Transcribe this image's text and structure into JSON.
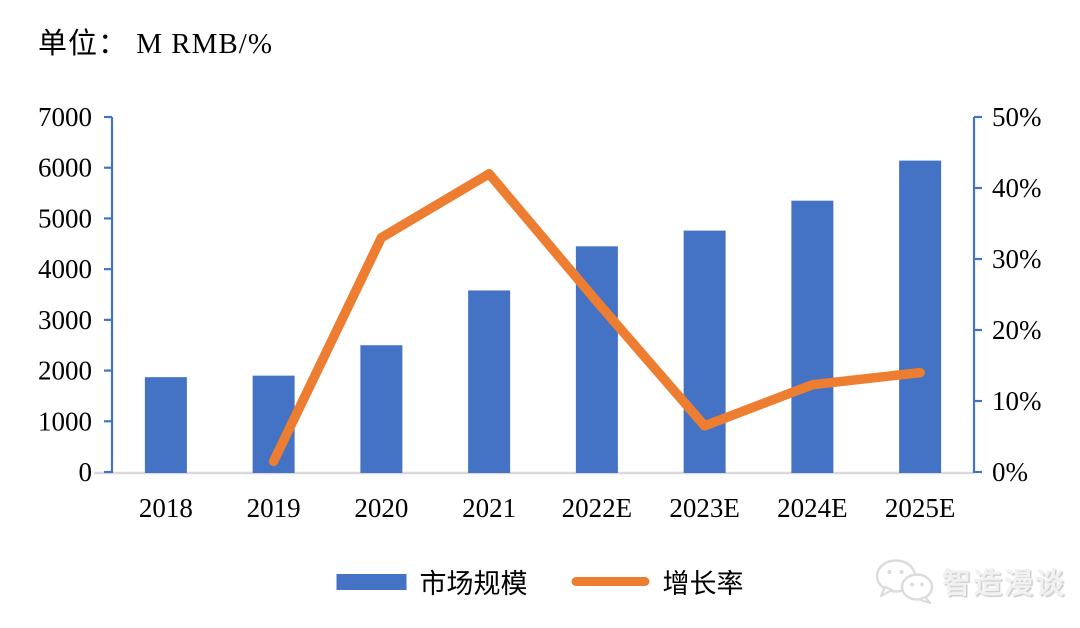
{
  "title": "单位： M RMB/%",
  "legend": {
    "market_size": "市场规模",
    "growth_rate": "增长率"
  },
  "watermark": "智造漫谈",
  "colors": {
    "bar": "#4472C4",
    "line": "#ED7D31",
    "axis": "#4472C4",
    "baseline": "#D9D9D9",
    "text": "#000000",
    "watermark_gray": "#DCDCDC"
  },
  "chart_data": {
    "type": "bar",
    "subtype": "bar+line combo, dual axis",
    "title": "单位： M RMB/%",
    "categories": [
      "2018",
      "2019",
      "2020",
      "2021",
      "2022E",
      "2023E",
      "2024E",
      "2025E"
    ],
    "series": [
      {
        "name": "市场规模",
        "type": "bar",
        "axis": "left",
        "unit": "M RMB",
        "values": [
          1870,
          1900,
          2500,
          3580,
          4450,
          4760,
          5350,
          6140
        ]
      },
      {
        "name": "增长率",
        "type": "line",
        "axis": "right",
        "unit": "%",
        "values": [
          null,
          1.5,
          33,
          42,
          24,
          6.5,
          12.3,
          14
        ]
      }
    ],
    "left_axis": {
      "min": 0,
      "max": 7000,
      "step": 1000
    },
    "right_axis": {
      "min": 0,
      "max": 50,
      "step": 10,
      "suffix": "%"
    },
    "grid": false,
    "legend_position": "bottom"
  }
}
